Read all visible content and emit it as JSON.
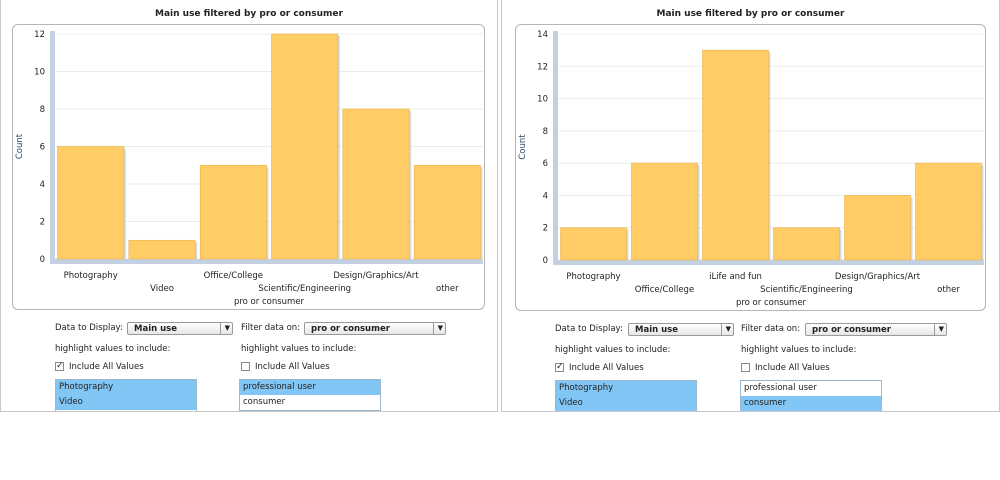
{
  "chart_data": [
    {
      "type": "bar",
      "title": "Main use filtered by pro or consumer",
      "xlabel": "pro or consumer",
      "ylabel": "Count",
      "ylim": [
        0,
        12
      ],
      "yticks": [
        0,
        2,
        4,
        6,
        8,
        10,
        12
      ],
      "categories": [
        "Photography",
        "Video",
        "Office/College",
        "Scientific/Engineering",
        "Design/Graphics/Art",
        "other"
      ],
      "values": [
        6,
        1,
        5,
        12,
        8,
        5
      ],
      "bar_color": "#ffcc66",
      "grid": true,
      "legend": "none"
    },
    {
      "type": "bar",
      "title": "Main use filtered by pro or consumer",
      "xlabel": "pro or consumer",
      "ylabel": "Count",
      "ylim": [
        0,
        14
      ],
      "yticks": [
        0,
        2,
        4,
        6,
        8,
        10,
        12,
        14
      ],
      "categories": [
        "Photography",
        "Office/College",
        "iLife and fun",
        "Scientific/Engineering",
        "Design/Graphics/Art",
        "other"
      ],
      "values": [
        2,
        6,
        13,
        2,
        4,
        6
      ],
      "bar_color": "#ffcc66",
      "grid": true,
      "legend": "none"
    }
  ],
  "panels": [
    {
      "controls": {
        "data_label": "Data to Display:",
        "data_value": "Main use",
        "filter_label": "Filter data on:",
        "filter_value": "pro or consumer",
        "highlight_label_1": "highlight values to include:",
        "highlight_label_2": "highlight values to include:",
        "include_all_1": "Include All Values",
        "include_all_2": "Include All Values",
        "include_all_1_checked": true,
        "include_all_2_checked": false,
        "list1": [
          "Photography",
          "Video"
        ],
        "list1_selected": [
          true,
          true
        ],
        "list2": [
          "professional user",
          "consumer"
        ],
        "list2_selected": [
          true,
          false
        ]
      }
    },
    {
      "controls": {
        "data_label": "Data to Display:",
        "data_value": "Main use",
        "filter_label": "Filter data on:",
        "filter_value": "pro or consumer",
        "highlight_label_1": "highlight values to include:",
        "highlight_label_2": "highlight values to include:",
        "include_all_1": "Include All Values",
        "include_all_2": "Include All Values",
        "include_all_1_checked": true,
        "include_all_2_checked": false,
        "list1": [
          "Photography",
          "Video"
        ],
        "list1_selected": [
          true,
          true
        ],
        "list2": [
          "professional user",
          "consumer"
        ],
        "list2_selected": [
          false,
          true
        ]
      }
    }
  ]
}
